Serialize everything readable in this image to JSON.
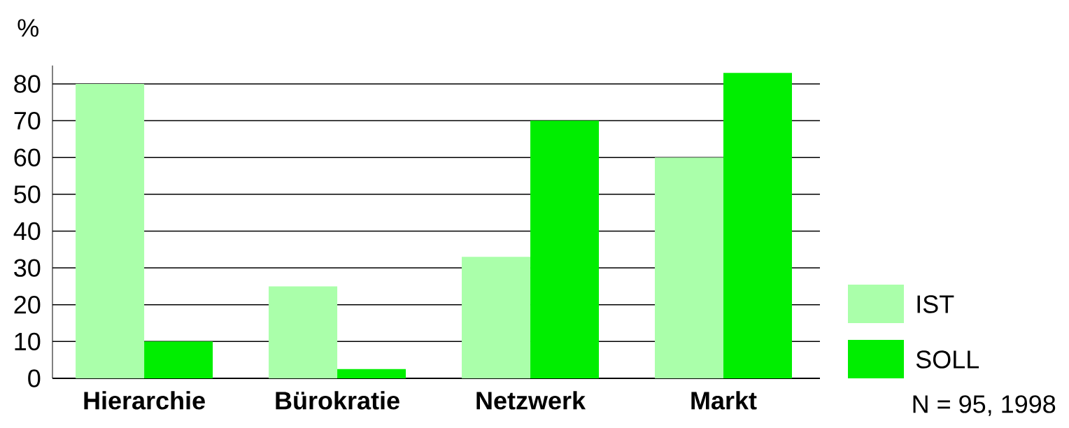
{
  "chart_data": {
    "type": "bar",
    "ylabel": "%",
    "categories": [
      "Hierarchie",
      "Bürokratie",
      "Netzwerk",
      "Markt"
    ],
    "series": [
      {
        "name": "IST",
        "color": "#aaffaa",
        "values": [
          80,
          25,
          33,
          60
        ]
      },
      {
        "name": "SOLL",
        "color": "#00ee00",
        "values": [
          10,
          2.5,
          70,
          83
        ]
      }
    ],
    "ylim": [
      0,
      85
    ],
    "yticks": [
      0,
      10,
      20,
      30,
      40,
      50,
      60,
      70,
      80
    ],
    "grid": "y",
    "legend": "bottom right",
    "annotations": [
      "N = 95, 1998"
    ]
  }
}
